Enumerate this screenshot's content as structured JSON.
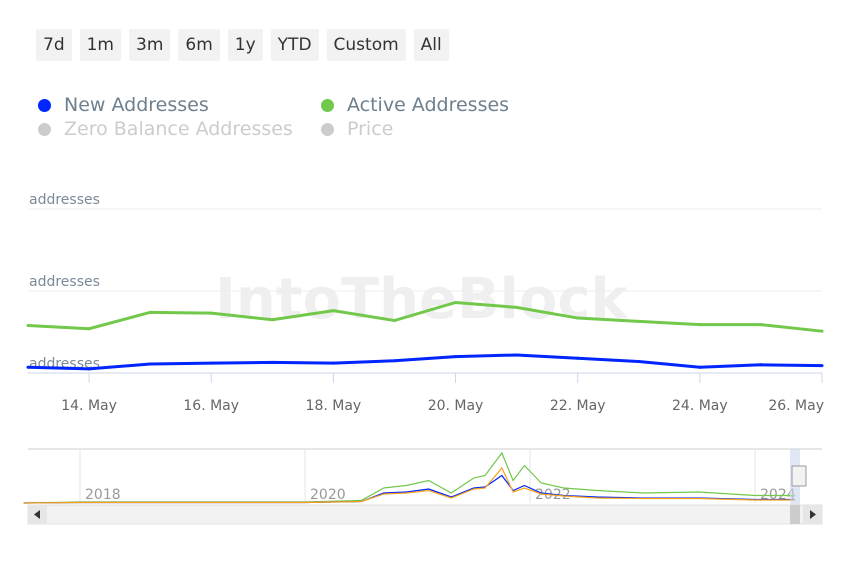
{
  "range_selector": {
    "buttons": [
      "7d",
      "1m",
      "3m",
      "6m",
      "1y",
      "YTD",
      "Custom",
      "All"
    ]
  },
  "legend": [
    {
      "label": "New Addresses",
      "color": "#0026ff",
      "active": true
    },
    {
      "label": "Active Addresses",
      "color": "#71c84a",
      "active": true
    },
    {
      "label": "Zero Balance Addresses",
      "color": "#cccccc",
      "active": false
    },
    {
      "label": "Price",
      "color": "#cccccc",
      "active": false
    }
  ],
  "watermark": "IntoTheBlock",
  "chart_data": {
    "type": "line",
    "x": [
      "13 May",
      "14 May",
      "15 May",
      "16 May",
      "17 May",
      "18 May",
      "19 May",
      "20 May",
      "21 May",
      "22 May",
      "23 May",
      "24 May",
      "25 May",
      "26 May"
    ],
    "x_tick_labels": [
      "14. May",
      "16. May",
      "18. May",
      "20. May",
      "22. May",
      "24. May",
      "26. May"
    ],
    "y_tick_labels": [
      "addresses",
      "addresses",
      "addresses"
    ],
    "y_note": "values in gridline units (no numbers printed)",
    "ylim": [
      0,
      2
    ],
    "grid": true,
    "series": [
      {
        "name": "Active Addresses",
        "color": "#71c84a",
        "values": [
          0.58,
          0.54,
          0.74,
          0.73,
          0.65,
          0.76,
          0.64,
          0.86,
          0.8,
          0.67,
          0.63,
          0.59,
          0.59,
          0.51
        ]
      },
      {
        "name": "New Addresses",
        "color": "#0026ff",
        "values": [
          0.07,
          0.05,
          0.11,
          0.12,
          0.13,
          0.12,
          0.15,
          0.2,
          0.22,
          0.18,
          0.14,
          0.07,
          0.1,
          0.09
        ]
      }
    ],
    "navigator": {
      "x_tick_labels": [
        "2018",
        "2020",
        "2022",
        "2024"
      ],
      "years": [
        2017.5,
        2018,
        2019,
        2020,
        2020.5,
        2020.7,
        2020.9,
        2021.1,
        2021.3,
        2021.5,
        2021.6,
        2021.75,
        2021.85,
        2021.95,
        2022.1,
        2022.3,
        2022.6,
        2023,
        2023.5,
        2024,
        2024.5
      ],
      "active": [
        0,
        0.02,
        0.02,
        0.02,
        0.05,
        0.3,
        0.35,
        0.45,
        0.2,
        0.5,
        0.55,
        1.0,
        0.45,
        0.75,
        0.4,
        0.3,
        0.25,
        0.2,
        0.22,
        0.15,
        0.15
      ],
      "new": [
        0,
        0.01,
        0.01,
        0.01,
        0.03,
        0.2,
        0.22,
        0.28,
        0.12,
        0.3,
        0.32,
        0.55,
        0.25,
        0.35,
        0.2,
        0.15,
        0.12,
        0.1,
        0.1,
        0.07,
        0.07
      ],
      "price": [
        0,
        0.01,
        0.01,
        0.01,
        0.03,
        0.18,
        0.2,
        0.25,
        0.1,
        0.28,
        0.3,
        0.7,
        0.22,
        0.3,
        0.18,
        0.14,
        0.1,
        0.09,
        0.09,
        0.06,
        0.06
      ]
    }
  }
}
